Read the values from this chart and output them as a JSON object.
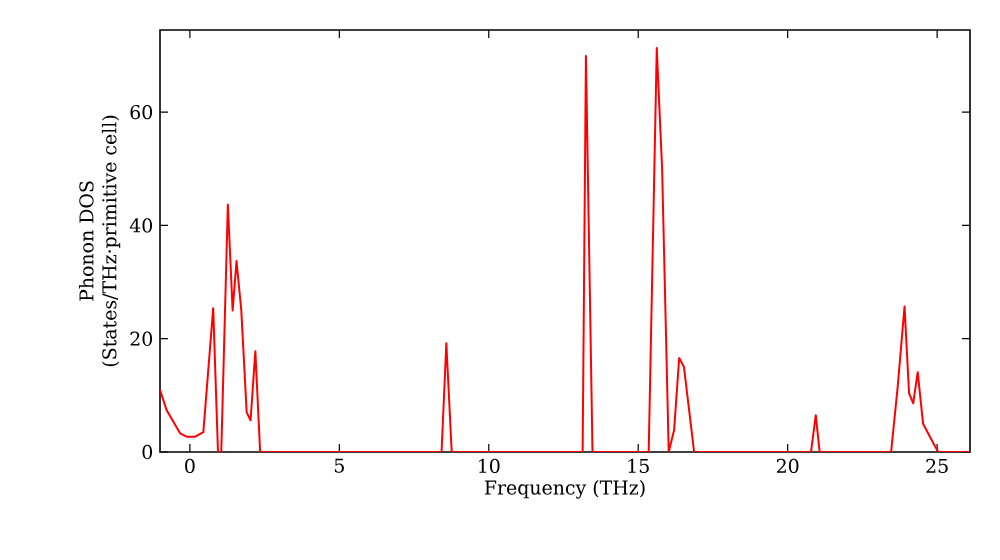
{
  "chart_data": {
    "type": "line",
    "xlabel": "Frequency (THz)",
    "ylabel": "Phonon DOS\n(States/THz·primitive cell)",
    "xlim": [
      -1,
      26.1
    ],
    "ylim": [
      0,
      74.5
    ],
    "xticks": [
      0,
      5,
      10,
      15,
      20,
      25
    ],
    "yticks": [
      0,
      20,
      40,
      60
    ],
    "grid": false,
    "marker": "none",
    "line_style": "solid",
    "series": [
      {
        "color": "#ff0000",
        "x": [
          -1.0,
          -0.78,
          -0.33,
          -0.11,
          0.18,
          0.45,
          0.78,
          0.94,
          1.05,
          1.27,
          1.43,
          1.56,
          1.72,
          1.9,
          2.03,
          2.19,
          2.35,
          8.42,
          8.58,
          8.76,
          13.14,
          13.25,
          13.47,
          15.35,
          15.62,
          15.8,
          16.02,
          16.2,
          16.37,
          16.53,
          16.87,
          20.78,
          20.94,
          21.07,
          23.46,
          23.68,
          23.91,
          24.06,
          24.2,
          24.35,
          24.53,
          24.91,
          25.04,
          26.1
        ],
        "values": [
          11,
          7.4,
          3.3,
          2.7,
          2.7,
          3.5,
          25.4,
          0,
          0,
          43.7,
          25,
          33.7,
          25,
          7,
          5.6,
          17.8,
          0,
          0,
          19.2,
          0,
          0,
          69.9,
          0,
          0,
          71.3,
          49.8,
          0,
          3.9,
          16.6,
          15,
          0,
          0,
          6.5,
          0,
          0,
          11.5,
          25.7,
          10.4,
          8.6,
          14.1,
          5,
          1.2,
          0,
          0
        ]
      }
    ]
  }
}
